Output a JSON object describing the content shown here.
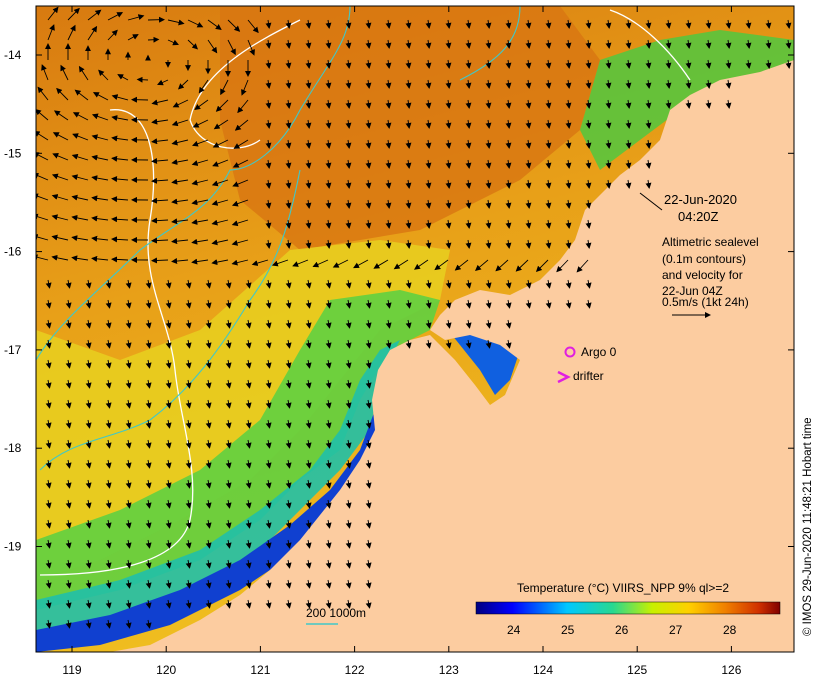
{
  "map": {
    "axes": {
      "lon_ticks": [
        "119",
        "120",
        "121",
        "122",
        "123",
        "124",
        "125",
        "126"
      ],
      "lat_ticks": [
        "-14",
        "-15",
        "-16",
        "-17",
        "-18",
        "-19"
      ]
    },
    "annotation": {
      "date": "22-Jun-2020",
      "time": "04:20Z",
      "legend_lines": [
        "Altimetric sealevel",
        "(0.1m contours)",
        "and velocity for",
        "22-Jun 04Z",
        "0.5m/s (1kt 24h)"
      ]
    },
    "markers": [
      {
        "name": "argo",
        "label": "Argo 0",
        "lon": 124.02,
        "lat": -17.04,
        "color": "#e020e0"
      },
      {
        "name": "drifter",
        "label": "drifter",
        "lon": 123.98,
        "lat": -17.3,
        "color": "#e020e0"
      }
    ],
    "bathymetry_legend": {
      "label": "200  1000m",
      "color": "#40c8c8"
    },
    "colorbar": {
      "title": "Temperature (°C) VIIRS_NPP 9% ql>=2",
      "tick_labels": [
        "24",
        "25",
        "26",
        "27",
        "28"
      ],
      "range": [
        23.3,
        28.9
      ]
    },
    "credit": "© IMOS 29-Jun-2020 11:48:21 Hobart time",
    "colors": {
      "land": "#fccca0",
      "contour": "#ffffff",
      "bathymetry": "#40c8c8",
      "marker": "#e020e0"
    }
  }
}
